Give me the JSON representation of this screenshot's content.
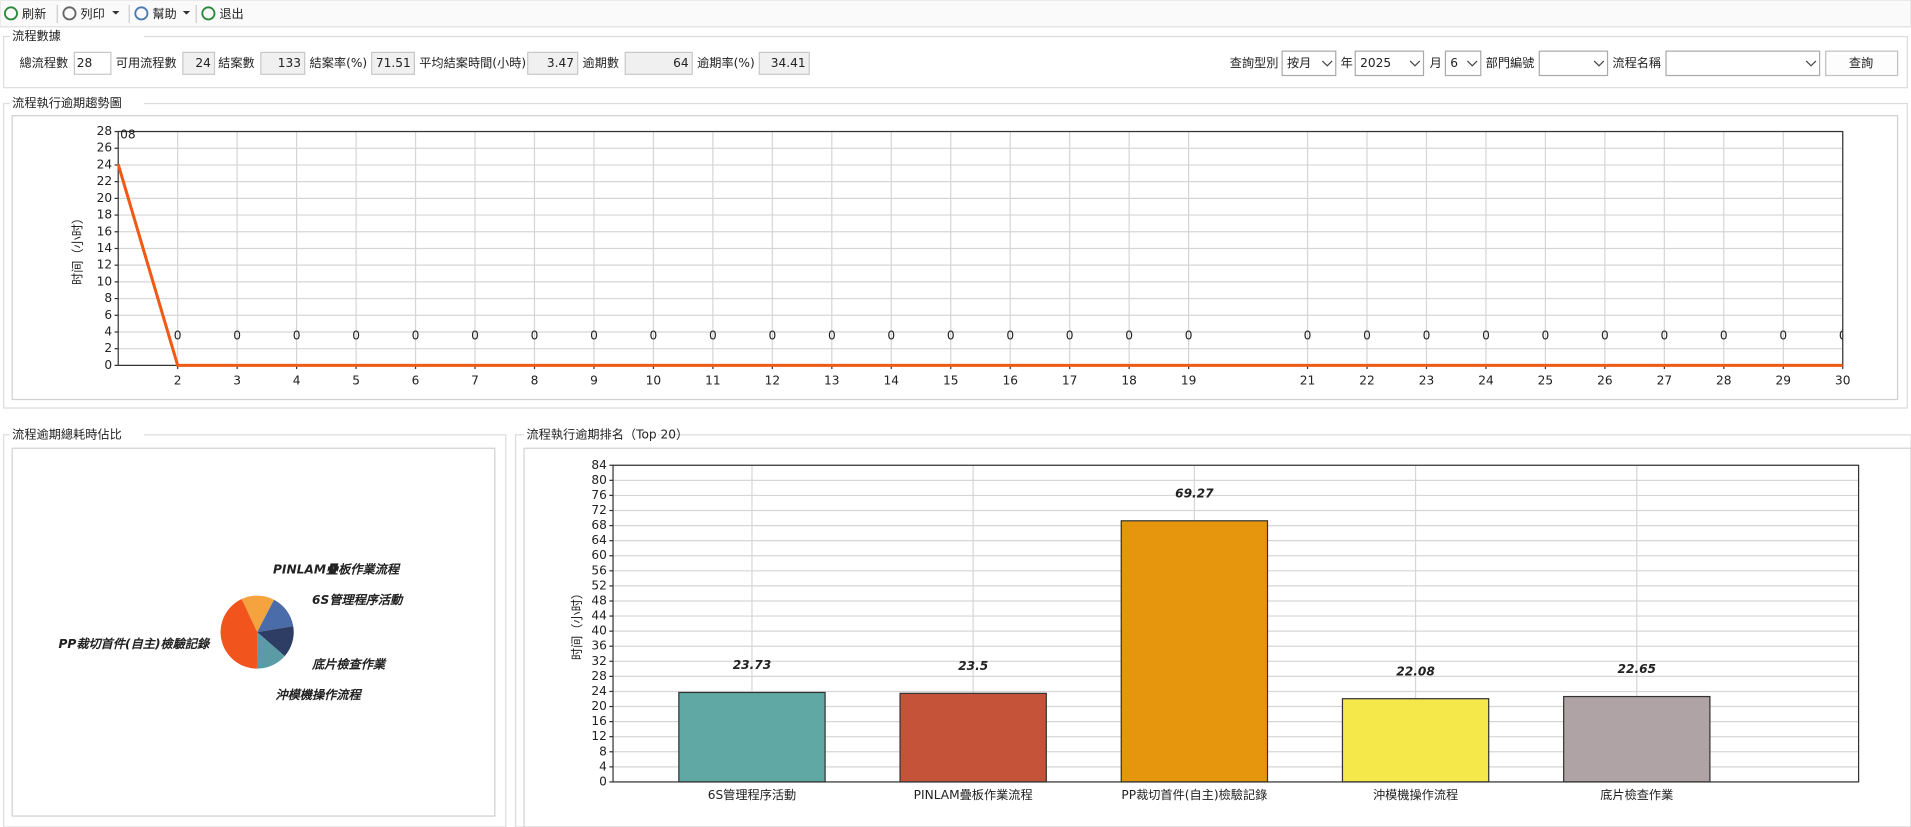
{
  "toolbar": {
    "items": [
      "刷新",
      "列印",
      "幫助",
      "退出"
    ]
  },
  "stats": {
    "title": "流程數據",
    "fields": [
      {
        "label": "總流程數",
        "value": "28"
      },
      {
        "label": "可用流程數",
        "value": "24"
      },
      {
        "label": "結案數",
        "value": "133"
      },
      {
        "label": "結案率(%)",
        "value": "71.51"
      },
      {
        "label": "平均結案時間(小時)",
        "value": "3.47"
      },
      {
        "label": "逾期數",
        "value": "64"
      },
      {
        "label": "逾期率(%)",
        "value": "34.41"
      }
    ]
  },
  "query": {
    "fields": [
      {
        "label": "查詢型別",
        "value": "按月"
      },
      {
        "label": "年",
        "value": "2025"
      },
      {
        "label": "月",
        "value": "6"
      },
      {
        "label": "部門編號"
      },
      {
        "label": "流程名稱"
      }
    ],
    "button": "查詢"
  },
  "chart_data": [
    {
      "type": "line",
      "title": "流程執行逾期趨勢圖",
      "y_label": "时间（小时）",
      "color": "#f05a14",
      "x": [
        1,
        2,
        3,
        4,
        5,
        6,
        7,
        8,
        9,
        10,
        11,
        12,
        13,
        14,
        15,
        16,
        17,
        18,
        19,
        21,
        22,
        23,
        24,
        25,
        26,
        27,
        28,
        29,
        30
      ],
      "values": [
        24.08,
        0,
        0,
        0,
        0,
        0,
        0,
        0,
        0,
        0,
        0,
        0,
        0,
        0,
        0,
        0,
        0,
        0,
        0,
        0,
        0,
        0,
        0,
        0,
        0,
        0,
        0,
        0,
        0
      ],
      "xlim": [
        1,
        30
      ],
      "xticks": [
        2,
        3,
        4,
        5,
        6,
        7,
        8,
        9,
        10,
        11,
        12,
        13,
        14,
        15,
        16,
        17,
        18,
        19,
        21,
        22,
        23,
        24,
        25,
        26,
        27,
        28,
        29,
        30
      ],
      "ylim": [
        0,
        28
      ],
      "yticks": [
        0,
        2,
        4,
        6,
        8,
        10,
        12,
        14,
        16,
        18,
        20,
        22,
        24,
        26,
        28
      ],
      "grid": true
    },
    {
      "type": "pie",
      "title": "流程逾期總耗時佔比",
      "categories": [
        "PINLAM疊板作業流程",
        "6S管理程序活動",
        "底片檢查作業",
        "沖模機操作流程",
        "PP裁切首件(自主)檢驗記錄"
      ],
      "values": [
        23.5,
        23.73,
        22.65,
        22.08,
        69.27
      ],
      "colors": [
        "#f4a33e",
        "#4a6ca8",
        "#2e3d64",
        "#5b9ba6",
        "#f2541d"
      ]
    },
    {
      "type": "bar",
      "title": "流程執行逾期排名（Top 20）",
      "y_label": "时间（小时）",
      "categories": [
        "6S管理程序活動",
        "PINLAM疊板作業流程",
        "PP裁切首件(自主)檢驗記錄",
        "沖模機操作流程",
        "底片檢查作業"
      ],
      "values": [
        23.73,
        23.5,
        69.27,
        22.08,
        22.65
      ],
      "colors": [
        "#5fa8a3",
        "#c5533a",
        "#e6960c",
        "#f5e84a",
        "#b0a3a6"
      ],
      "ylim": [
        0,
        84
      ],
      "yticks": [
        0,
        4,
        8,
        12,
        16,
        20,
        24,
        28,
        32,
        36,
        40,
        44,
        48,
        52,
        56,
        60,
        64,
        68,
        72,
        76,
        80,
        84
      ],
      "grid": true
    }
  ]
}
